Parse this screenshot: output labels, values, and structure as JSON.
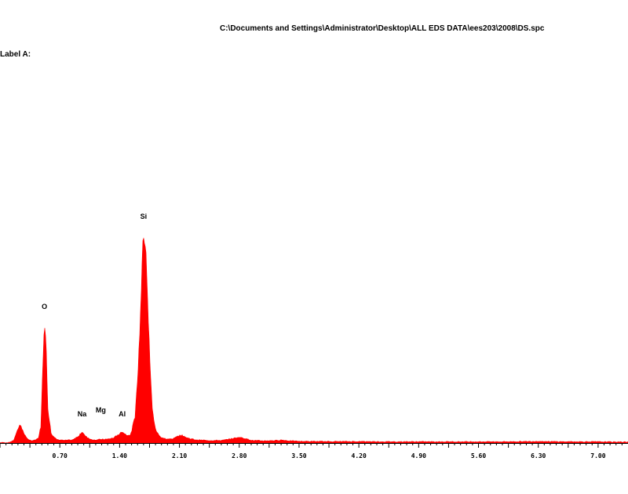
{
  "header": {
    "file_path": "C:\\Documents and Settings\\Administrator\\Desktop\\ALL EDS DATA\\ees203\\2008\\DS.spc",
    "label": "Label A:"
  },
  "colors": {
    "spectrum": "#ff0000",
    "axis": "#000000",
    "background": "#ffffff"
  },
  "chart_data": {
    "type": "area",
    "title": "",
    "xlabel": "",
    "ylabel": "",
    "xlim": [
      0.0,
      7.35
    ],
    "ylim": [
      0,
      1.0
    ],
    "x_ticks": [
      "0.70",
      "1.40",
      "2.10",
      "2.80",
      "3.50",
      "4.20",
      "4.90",
      "5.60",
      "6.30",
      "7.00"
    ],
    "grid": false,
    "legend": "none",
    "peaks": [
      {
        "element": "O",
        "energy": 0.52,
        "intensity": 0.59
      },
      {
        "element": "Na",
        "energy": 0.96,
        "intensity": 0.05
      },
      {
        "element": "Mg",
        "energy": 1.18,
        "intensity": 0.015
      },
      {
        "element": "Al",
        "energy": 1.43,
        "intensity": 0.05
      },
      {
        "element": "Si",
        "energy": 1.68,
        "intensity": 1.0
      }
    ],
    "series": [
      {
        "x": [
          0.0,
          0.1,
          0.16,
          0.2,
          0.24,
          0.28,
          0.34,
          0.4,
          0.45,
          0.48,
          0.5,
          0.52,
          0.54,
          0.56,
          0.6,
          0.66,
          0.75,
          0.85,
          0.92,
          0.96,
          1.0,
          1.06,
          1.12,
          1.18,
          1.24,
          1.32,
          1.38,
          1.43,
          1.48,
          1.53,
          1.58,
          1.62,
          1.65,
          1.68,
          1.71,
          1.74,
          1.78,
          1.82,
          1.88,
          1.95,
          2.02,
          2.08,
          2.13,
          2.2,
          2.3,
          2.45,
          2.6,
          2.74,
          2.8,
          2.86,
          2.95,
          3.1,
          3.25,
          3.3,
          3.36,
          3.5,
          3.8,
          4.2,
          4.6,
          5.0,
          5.4,
          5.8,
          6.2,
          6.3,
          6.4,
          6.6,
          6.9,
          7.2,
          7.35
        ],
        "y": [
          0.0,
          0.0,
          0.01,
          0.055,
          0.085,
          0.04,
          0.01,
          0.01,
          0.02,
          0.08,
          0.34,
          0.59,
          0.43,
          0.16,
          0.04,
          0.015,
          0.01,
          0.012,
          0.03,
          0.05,
          0.03,
          0.015,
          0.012,
          0.015,
          0.015,
          0.02,
          0.035,
          0.05,
          0.035,
          0.035,
          0.12,
          0.35,
          0.7,
          1.0,
          0.92,
          0.5,
          0.16,
          0.06,
          0.025,
          0.015,
          0.018,
          0.03,
          0.035,
          0.02,
          0.012,
          0.01,
          0.01,
          0.02,
          0.025,
          0.02,
          0.01,
          0.008,
          0.01,
          0.012,
          0.009,
          0.006,
          0.005,
          0.005,
          0.004,
          0.004,
          0.004,
          0.004,
          0.005,
          0.006,
          0.005,
          0.004,
          0.004,
          0.003,
          0.003
        ]
      }
    ]
  }
}
